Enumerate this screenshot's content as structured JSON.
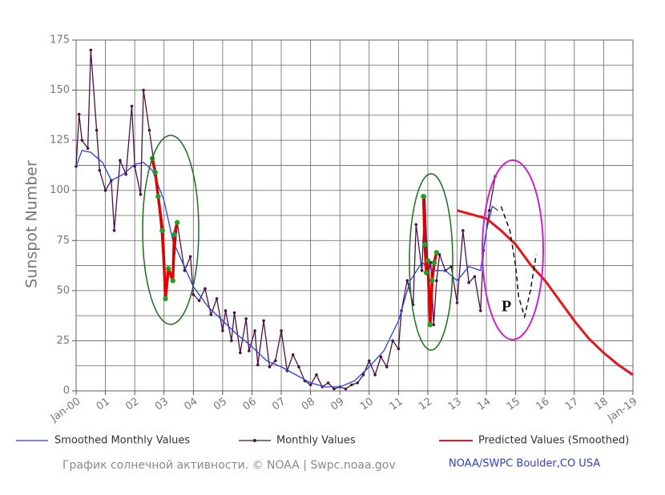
{
  "chart_data": {
    "type": "line",
    "y_label": "Sunspot Number",
    "xlim": [
      0,
      19
    ],
    "ylim": [
      0,
      175
    ],
    "xticks": [
      {
        "value": 0,
        "label": "Jan-00"
      },
      {
        "value": 1,
        "label": "01"
      },
      {
        "value": 2,
        "label": "02"
      },
      {
        "value": 3,
        "label": "03"
      },
      {
        "value": 4,
        "label": "04"
      },
      {
        "value": 5,
        "label": "05"
      },
      {
        "value": 6,
        "label": "06"
      },
      {
        "value": 7,
        "label": "07"
      },
      {
        "value": 8,
        "label": "08"
      },
      {
        "value": 9,
        "label": "09"
      },
      {
        "value": 10,
        "label": "10"
      },
      {
        "value": 11,
        "label": "11"
      },
      {
        "value": 12,
        "label": "12"
      },
      {
        "value": 13,
        "label": "13"
      },
      {
        "value": 14,
        "label": "14"
      },
      {
        "value": 15,
        "label": "15"
      },
      {
        "value": 16,
        "label": "16"
      },
      {
        "value": 17,
        "label": "17"
      },
      {
        "value": 18,
        "label": "18"
      },
      {
        "value": 19,
        "label": "Jan-19"
      }
    ],
    "yticks": [
      0,
      25,
      50,
      75,
      100,
      125,
      150,
      175
    ],
    "ygrid_minor": [
      12.5,
      37.5,
      62.5,
      87.5,
      112.5,
      137.5,
      162.5
    ],
    "grid": true,
    "series": [
      {
        "name": "Smoothed Monthly Values",
        "color": "#2a3fe0",
        "markers": false,
        "x": [
          0,
          0.2,
          0.5,
          0.9,
          1.2,
          1.6,
          2.0,
          2.3,
          2.6,
          3.0,
          3.3,
          3.6,
          4.0,
          4.5,
          5.0,
          5.5,
          6.0,
          6.5,
          7.0,
          7.5,
          8.0,
          8.5,
          9.0,
          9.5,
          10.0,
          10.5,
          11.0,
          11.4,
          11.8,
          12.2,
          12.6,
          13.0,
          13.4,
          13.8,
          14.0,
          14.2,
          14.4
        ],
        "values": [
          112,
          120,
          119,
          114,
          105,
          108,
          113,
          114,
          110,
          95,
          75,
          65,
          52,
          42,
          35,
          28,
          22,
          15,
          12,
          8,
          4,
          2,
          2,
          5,
          12,
          20,
          35,
          55,
          64,
          60,
          60,
          55,
          62,
          60,
          80,
          92,
          90
        ]
      },
      {
        "name": "Monthly Values",
        "color": "#4b1245",
        "markers": true,
        "x": [
          0.0,
          0.1,
          0.2,
          0.4,
          0.5,
          0.7,
          0.8,
          1.0,
          1.2,
          1.3,
          1.5,
          1.7,
          1.9,
          2.0,
          2.2,
          2.3,
          2.5,
          2.7,
          2.9,
          3.05,
          3.15,
          3.3,
          3.45,
          3.7,
          3.9,
          4.0,
          4.2,
          4.4,
          4.6,
          4.8,
          5.0,
          5.1,
          5.3,
          5.4,
          5.6,
          5.8,
          5.9,
          6.1,
          6.2,
          6.4,
          6.6,
          6.8,
          7.0,
          7.2,
          7.4,
          7.6,
          7.8,
          8.0,
          8.2,
          8.4,
          8.6,
          8.8,
          9.0,
          9.2,
          9.4,
          9.6,
          9.8,
          10.0,
          10.2,
          10.4,
          10.6,
          10.8,
          11.0,
          11.1,
          11.3,
          11.5,
          11.6,
          11.8,
          11.9,
          12.0,
          12.1,
          12.2,
          12.3,
          12.4,
          12.6,
          12.8,
          13.0,
          13.2,
          13.4,
          13.6,
          13.8,
          13.9,
          14.1,
          14.3
        ],
        "values": [
          112,
          138,
          125,
          121,
          170,
          130,
          110,
          100,
          105,
          80,
          115,
          108,
          142,
          112,
          98,
          150,
          130,
          109,
          80,
          46,
          61,
          55,
          84,
          60,
          67,
          48,
          45,
          51,
          38,
          46,
          30,
          40,
          25,
          39,
          19,
          36,
          20,
          30,
          13,
          35,
          12,
          15,
          30,
          10,
          18,
          12,
          5,
          3,
          8,
          2,
          4,
          1,
          2,
          1,
          3,
          4,
          8,
          15,
          8,
          17,
          12,
          25,
          21,
          40,
          55,
          43,
          83,
          60,
          97,
          58,
          64,
          33,
          55,
          68,
          60,
          62,
          44,
          80,
          54,
          57,
          40,
          70,
          90,
          107
        ]
      },
      {
        "name": "Predicted Values (Smoothed)",
        "color": "#e8141c",
        "markers": false,
        "x": [
          13.0,
          13.5,
          14.0,
          14.5,
          15.0,
          15.5,
          16.0,
          16.5,
          17.0,
          17.5,
          18.0,
          18.5,
          19.0
        ],
        "values": [
          90,
          88,
          86,
          80,
          73,
          63,
          55,
          45,
          35,
          26,
          19,
          13,
          8
        ]
      }
    ],
    "highlights": [
      {
        "color": "#e00000",
        "marker_color": "#22a022",
        "x": [
          2.6,
          2.7,
          2.8,
          2.95,
          3.05,
          3.15,
          3.3,
          3.35,
          3.45
        ],
        "values": [
          116,
          109,
          97,
          80,
          46,
          61,
          55,
          78,
          84
        ]
      },
      {
        "color": "#e00000",
        "marker_color": "#22a022",
        "x": [
          11.85,
          11.9,
          11.95,
          12.0,
          12.08,
          12.15,
          12.22,
          12.3
        ],
        "values": [
          97,
          73,
          59,
          65,
          33,
          55,
          64,
          69
        ]
      }
    ],
    "dashed": {
      "color": "#111111",
      "x": [
        14.5,
        14.8,
        15.0,
        15.1,
        15.3,
        15.5,
        15.7
      ],
      "values": [
        92,
        80,
        62,
        47,
        37,
        50,
        68
      ]
    },
    "annotation": "P",
    "caption": "График солнечной активности. © NOAA | Swpc.noaa.gov",
    "credit": "NOAA/SWPC Boulder,CO USA"
  }
}
